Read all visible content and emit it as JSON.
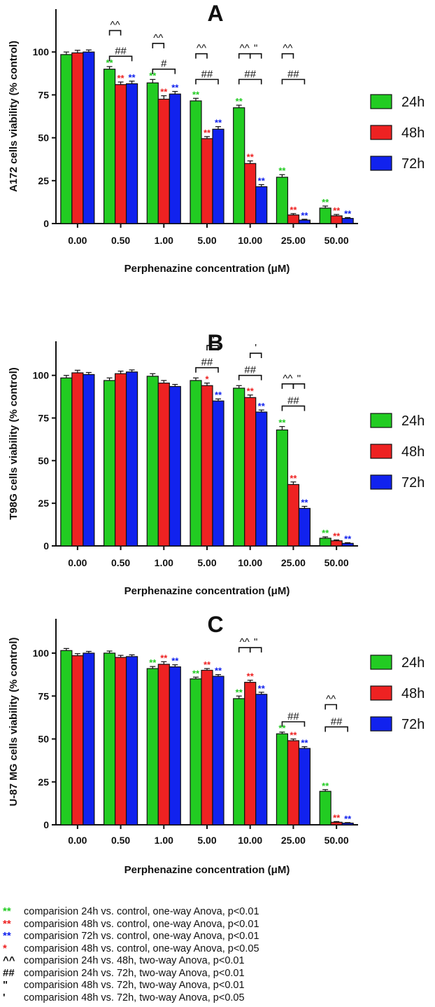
{
  "chart_data": [
    {
      "type": "bar",
      "panel_label": "A",
      "ylabel": "A172 cells viability (% control)",
      "xlabel": "Perphenazine concentration (μM)",
      "categories": [
        "0.00",
        "0.50",
        "1.00",
        "5.00",
        "10.00",
        "25.00",
        "50.00"
      ],
      "ylim": [
        0,
        125
      ],
      "yticks": [
        0,
        25,
        50,
        75,
        100
      ],
      "legend_position": "right",
      "series": [
        {
          "name": "24h",
          "color": "#22cc22",
          "values": [
            98.5,
            90,
            82,
            71.5,
            67.5,
            27,
            9
          ],
          "errors": [
            1.5,
            1.5,
            2,
            1.5,
            1.5,
            1.5,
            1.2
          ],
          "marks": [
            "",
            "**",
            "**",
            "**",
            "**",
            "**",
            "**"
          ]
        },
        {
          "name": "48h",
          "color": "#ee2222",
          "values": [
            99.5,
            81,
            72.5,
            49.5,
            35,
            5,
            4.5
          ],
          "errors": [
            1.5,
            1.5,
            2,
            1.2,
            1.5,
            0.8,
            0.8
          ],
          "marks": [
            "",
            "**",
            "**",
            "**",
            "**",
            "**",
            "**"
          ]
        },
        {
          "name": "72h",
          "color": "#1122ee",
          "values": [
            100,
            81.5,
            75.5,
            55,
            21.5,
            2,
            3
          ],
          "errors": [
            1.2,
            1.5,
            1.5,
            1.5,
            1.2,
            0.5,
            0.5
          ],
          "marks": [
            "",
            "**",
            "**",
            "**",
            "**",
            "**",
            "**"
          ]
        }
      ],
      "brackets": [
        {
          "category": 1,
          "from": 0,
          "to": 1,
          "label": "^^",
          "level": 1
        },
        {
          "category": 1,
          "from": 0,
          "to": 2,
          "label": "##",
          "level": 0
        },
        {
          "category": 2,
          "from": 0,
          "to": 1,
          "label": "^^",
          "level": 1
        },
        {
          "category": 2,
          "from": 0,
          "to": 2,
          "label": "#",
          "level": 0
        },
        {
          "category": 3,
          "from": 0,
          "to": 1,
          "label": "^^",
          "level": 1
        },
        {
          "category": 3,
          "from": 0,
          "to": 2,
          "label": "##",
          "level": 0
        },
        {
          "category": 4,
          "from": 0,
          "to": 1,
          "label": "^^",
          "level": 1
        },
        {
          "category": 4,
          "from": 1,
          "to": 2,
          "label": "\"",
          "level": 1
        },
        {
          "category": 4,
          "from": 0,
          "to": 2,
          "label": "##",
          "level": 0
        },
        {
          "category": 5,
          "from": 0,
          "to": 1,
          "label": "^^",
          "level": 1
        },
        {
          "category": 5,
          "from": 0,
          "to": 2,
          "label": "##",
          "level": 0
        }
      ],
      "bracket_base": 84,
      "bracket_step": 15
    },
    {
      "type": "bar",
      "panel_label": "B",
      "ylabel": "T98G cells viability (% control)",
      "xlabel": "Perphenazine concentration (μM)",
      "categories": [
        "0.00",
        "0.50",
        "1.00",
        "5.00",
        "10.00",
        "25.00",
        "50.00"
      ],
      "ylim": [
        0,
        120
      ],
      "yticks": [
        0,
        25,
        50,
        75,
        100
      ],
      "legend_position": "right",
      "series": [
        {
          "name": "24h",
          "color": "#22cc22",
          "values": [
            98.5,
            97,
            99.5,
            97,
            92.5,
            68,
            4.5
          ],
          "errors": [
            1.5,
            1.5,
            1.5,
            1.5,
            1.5,
            2,
            0.8
          ],
          "marks": [
            "",
            "",
            "",
            "",
            "",
            "**",
            "**"
          ]
        },
        {
          "name": "48h",
          "color": "#ee2222",
          "values": [
            101.5,
            101,
            95.5,
            94,
            87,
            36,
            3
          ],
          "errors": [
            1.5,
            1.5,
            1.5,
            1.5,
            1.5,
            1.5,
            0.5
          ],
          "marks": [
            "",
            "",
            "",
            "*",
            "**",
            "**",
            "**"
          ]
        },
        {
          "name": "72h",
          "color": "#1122ee",
          "values": [
            100.5,
            102,
            93.5,
            85,
            78.5,
            22,
            1.5
          ],
          "errors": [
            1.2,
            1.2,
            1.2,
            1.2,
            1.2,
            1.2,
            0.4
          ],
          "marks": [
            "",
            "",
            "",
            "**",
            "**",
            "**",
            "**"
          ]
        }
      ],
      "brackets": [
        {
          "category": 3,
          "from": 1,
          "to": 2,
          "label": "\"",
          "level": 1
        },
        {
          "category": 3,
          "from": 0,
          "to": 2,
          "label": "##",
          "level": 0
        },
        {
          "category": 4,
          "from": 1,
          "to": 2,
          "label": "'",
          "level": 1
        },
        {
          "category": 4,
          "from": 0,
          "to": 2,
          "label": "##",
          "level": 0
        },
        {
          "category": 5,
          "from": 0,
          "to": 1,
          "label": "^^",
          "level": 1
        },
        {
          "category": 5,
          "from": 1,
          "to": 2,
          "label": "\"",
          "level": 1
        },
        {
          "category": 5,
          "from": 0,
          "to": 2,
          "label": "##",
          "level": 0
        }
      ],
      "bracket_base": 82,
      "bracket_step": 13
    },
    {
      "type": "bar",
      "panel_label": "C",
      "ylabel": "U-87 MG cells viability (% control)",
      "xlabel": "Perphenazine concentration (μM)",
      "categories": [
        "0.00",
        "0.50",
        "1.00",
        "5.00",
        "10.00",
        "25.00",
        "50.00"
      ],
      "ylim": [
        0,
        120
      ],
      "yticks": [
        0,
        25,
        50,
        75,
        100
      ],
      "legend_position": "right",
      "series": [
        {
          "name": "24h",
          "color": "#22cc22",
          "values": [
            101.5,
            100,
            91,
            85,
            73.5,
            53,
            19.5
          ],
          "errors": [
            1.2,
            1.2,
            1.2,
            1,
            1.5,
            1,
            1
          ],
          "marks": [
            "",
            "",
            "**",
            "**",
            "**",
            "**",
            "**"
          ]
        },
        {
          "name": "48h",
          "color": "#ee2222",
          "values": [
            98.5,
            97.5,
            93.5,
            90,
            83,
            49,
            1.5
          ],
          "errors": [
            1.2,
            1.2,
            1.5,
            1,
            1.2,
            1,
            0.4
          ],
          "marks": [
            "",
            "",
            "**",
            "**",
            "**",
            "**",
            "**"
          ]
        },
        {
          "name": "72h",
          "color": "#1122ee",
          "values": [
            100,
            98,
            92,
            86.5,
            76,
            44.5,
            1
          ],
          "errors": [
            1,
            1,
            1.2,
            1,
            1.2,
            1,
            0.3
          ],
          "marks": [
            "",
            "",
            "**",
            "**",
            "**",
            "**",
            "**"
          ]
        }
      ],
      "brackets": [
        {
          "category": 4,
          "from": 0,
          "to": 1,
          "label": "^^",
          "level": 1
        },
        {
          "category": 4,
          "from": 1,
          "to": 2,
          "label": "\"",
          "level": 1
        },
        {
          "category": 5,
          "from": 0,
          "to": 2,
          "label": "##",
          "level": 0
        },
        {
          "category": 6,
          "from": 0,
          "to": 1,
          "label": "^^",
          "level": 1
        },
        {
          "category": 6,
          "from": 0,
          "to": 2,
          "label": "##",
          "level": 0
        }
      ],
      "bracket_base": 57,
      "bracket_step": 13
    }
  ],
  "footnotes": [
    {
      "symbol": "**",
      "symbol_color": "#22cc22",
      "text": "comparision 24h vs. control, one-way Anova, p<0.01"
    },
    {
      "symbol": "**",
      "symbol_color": "#ee2222",
      "text": "comparision 48h vs. control, one-way Anova, p<0.01"
    },
    {
      "symbol": "**",
      "symbol_color": "#1122ee",
      "text": "comparision 72h vs. control, one-way Anova, p<0.01"
    },
    {
      "symbol": "*",
      "symbol_color": "#ee2222",
      "text": "comparision 48h vs. control, one-way Anova, p<0.05"
    },
    {
      "symbol": "^^",
      "symbol_color": "#111111",
      "text": "comparision 24h vs. 48h, two-way Anova, p<0.01"
    },
    {
      "symbol": "##",
      "symbol_color": "#111111",
      "text": "comparision 24h vs. 72h, two-way Anova, p<0.01"
    },
    {
      "symbol": "\"",
      "symbol_color": "#111111",
      "text": "comparision 48h vs. 72h, two-way Anova, p<0.01"
    },
    {
      "symbol": "'",
      "symbol_color": "#111111",
      "text": "comparision 48h vs. 72h, two-way Anova, p<0.05"
    }
  ]
}
